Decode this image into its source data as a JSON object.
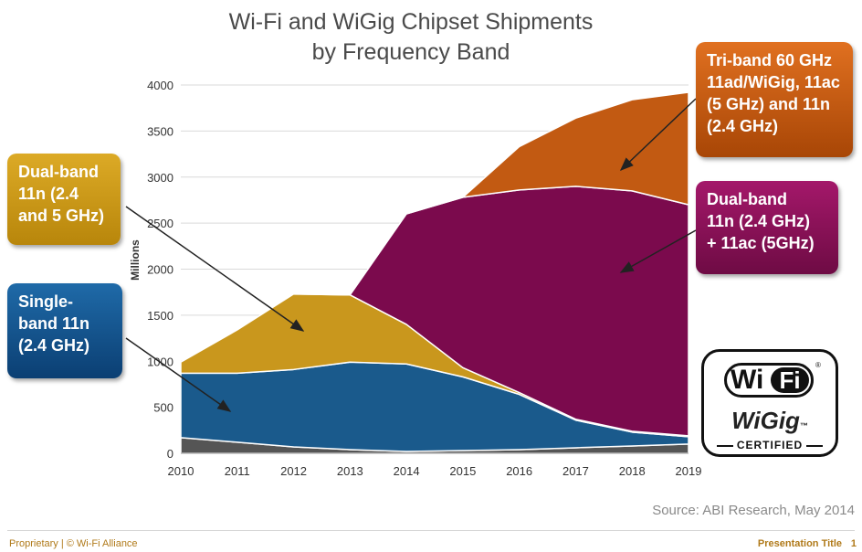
{
  "chart_data": {
    "type": "area",
    "stacked": true,
    "title": "Wi-Fi and WiGig Chipset Shipments",
    "subtitle": "by Frequency Band",
    "ylabel": "Millions",
    "xlabel": "",
    "x": [
      "2010",
      "2011",
      "2012",
      "2013",
      "2014",
      "2015",
      "2016",
      "2017",
      "2018",
      "2019"
    ],
    "ylim": [
      0,
      4000
    ],
    "yticks": [
      0,
      500,
      1000,
      1500,
      2000,
      2500,
      3000,
      3500,
      4000
    ],
    "grid": true,
    "series": [
      {
        "key": "other",
        "color": "#555555",
        "values": [
          170,
          120,
          70,
          40,
          20,
          30,
          40,
          60,
          80,
          100
        ]
      },
      {
        "key": "single",
        "color": "#1a5a8c",
        "values": [
          700,
          750,
          840,
          950,
          950,
          800,
          600,
          300,
          150,
          80
        ]
      },
      {
        "key": "dual_n",
        "color": "#c9971d",
        "values": [
          120,
          470,
          820,
          730,
          430,
          100,
          20,
          10,
          10,
          10
        ]
      },
      {
        "key": "dual_ac",
        "color": "#7b0a4d",
        "values": [
          0,
          0,
          0,
          0,
          1200,
          1850,
          2200,
          2530,
          2610,
          2510
        ]
      },
      {
        "key": "tri",
        "color": "#c25a12",
        "values": [
          0,
          0,
          0,
          0,
          0,
          0,
          470,
          740,
          990,
          1220
        ]
      }
    ],
    "series_start_index": {
      "other": 0,
      "single": 0,
      "dual_n": 0,
      "dual_ac": 2,
      "tri": 4
    }
  },
  "callouts": {
    "dual_n": "Dual-band\n11n (2.4\nand 5 GHz)",
    "single": "Single-\nband 11n\n(2.4 GHz)",
    "tri": "Tri-band 60 GHz\n11ad/WiGig, 11ac\n(5 GHz) and 11n\n(2.4 GHz)",
    "dual_ac": "Dual-band\n11n (2.4 GHz)\n+ 11ac (5GHz)"
  },
  "logo": {
    "wi": "Wi",
    "fi": "Fi",
    "registered": "®",
    "wigig": "WiGig",
    "tm": "™",
    "certified": "CERTIFIED"
  },
  "source": "Source: ABI Research, May 2014",
  "footer": {
    "left": "Proprietary | © Wi-Fi Alliance",
    "right": "Presentation Title",
    "page": "1"
  }
}
